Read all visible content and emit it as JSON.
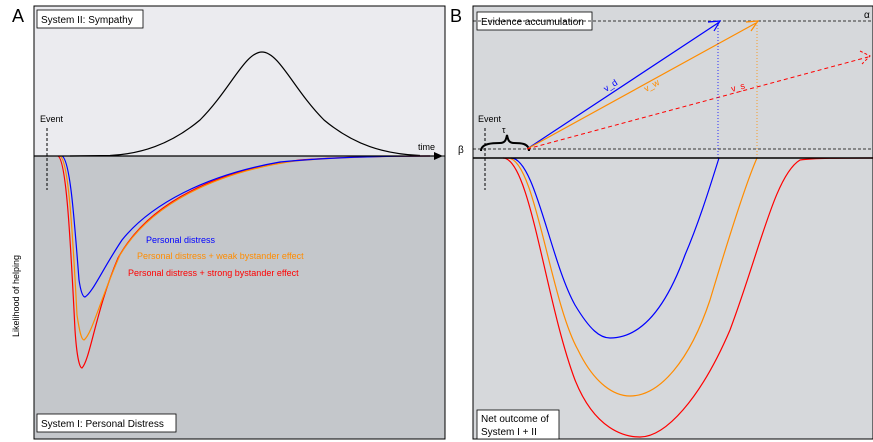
{
  "panel_a": {
    "letter": "A",
    "top_title": "System II: Sympathy",
    "bottom_title": "System I: Personal Distress",
    "event_label": "Event",
    "time_label": "time",
    "y_axis_label": "Likelihood of helping",
    "legend": [
      {
        "text": "Personal distress",
        "color": "#0000ff"
      },
      {
        "text": "Personal distress + weak bystander effect",
        "color": "#ff8c00"
      },
      {
        "text": "Personal distress + strong bystander effect",
        "color": "#ff0000"
      }
    ]
  },
  "panel_b": {
    "letter": "B",
    "top_title": "Evidence accumulation",
    "bottom_title_line1": "Net outcome of",
    "bottom_title_line2": "System I + II",
    "event_label": "Event",
    "tau_label": "τ",
    "alpha_label": "α",
    "beta_label": "β",
    "drift_labels": [
      {
        "text": "v_d",
        "color": "#0000ff"
      },
      {
        "text": "v_w",
        "color": "#ff8c00"
      },
      {
        "text": "v_s",
        "color": "#ff0000"
      }
    ]
  },
  "colors": {
    "top_bg": "#ebebef",
    "bottom_bg": "#c4c7cb",
    "panel_b_bg": "#d6d8db",
    "blue": "#0000ff",
    "orange": "#ff8c00",
    "red": "#ff0000"
  }
}
